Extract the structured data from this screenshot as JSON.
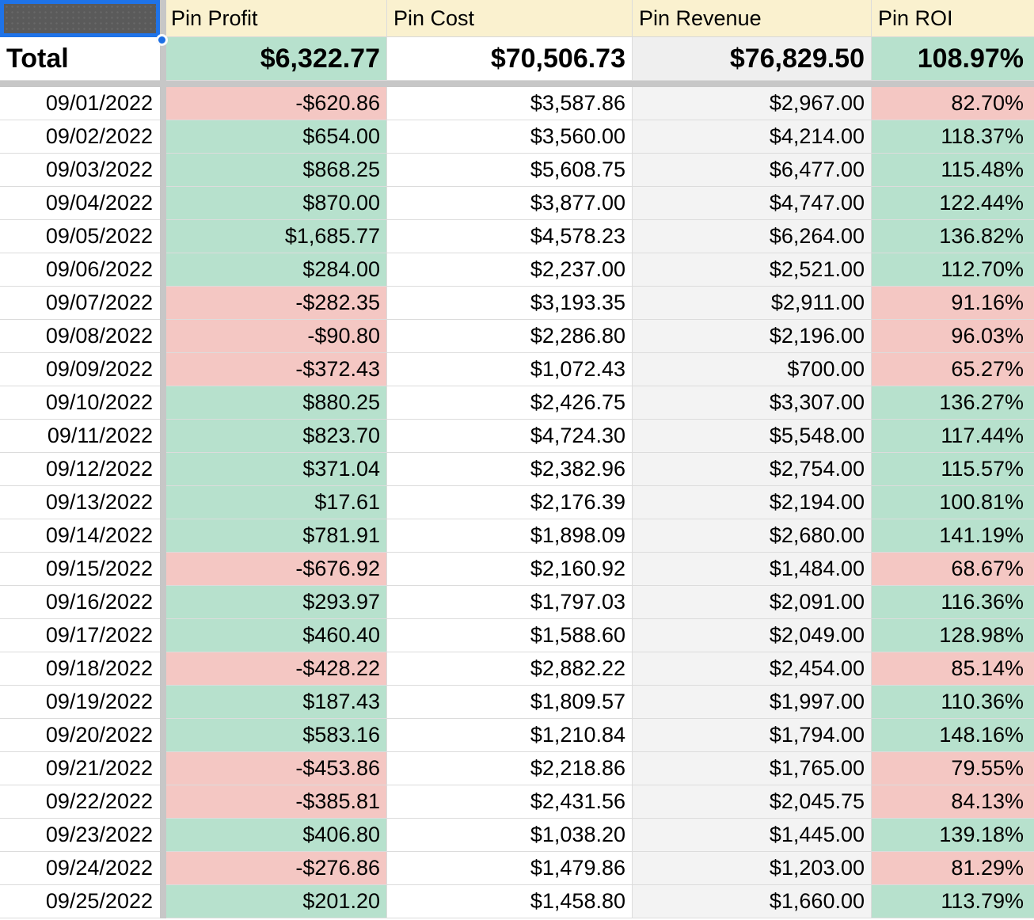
{
  "header": {
    "columns": [
      "Pin Profit",
      "Pin Cost",
      "Pin Revenue",
      "Pin ROI"
    ]
  },
  "total_row": {
    "label": "Total",
    "pin_profit": "$6,322.77",
    "pin_cost": "$70,506.73",
    "pin_revenue": "$76,829.50",
    "pin_roi": "108.97%"
  },
  "rows": [
    {
      "date": "09/01/2022",
      "profit": "-$620.86",
      "profit_state": "neg",
      "cost": "$3,587.86",
      "revenue": "$2,967.00",
      "roi": "82.70%",
      "roi_state": "neg"
    },
    {
      "date": "09/02/2022",
      "profit": "$654.00",
      "profit_state": "pos",
      "cost": "$3,560.00",
      "revenue": "$4,214.00",
      "roi": "118.37%",
      "roi_state": "pos"
    },
    {
      "date": "09/03/2022",
      "profit": "$868.25",
      "profit_state": "pos",
      "cost": "$5,608.75",
      "revenue": "$6,477.00",
      "roi": "115.48%",
      "roi_state": "pos"
    },
    {
      "date": "09/04/2022",
      "profit": "$870.00",
      "profit_state": "pos",
      "cost": "$3,877.00",
      "revenue": "$4,747.00",
      "roi": "122.44%",
      "roi_state": "pos"
    },
    {
      "date": "09/05/2022",
      "profit": "$1,685.77",
      "profit_state": "pos",
      "cost": "$4,578.23",
      "revenue": "$6,264.00",
      "roi": "136.82%",
      "roi_state": "pos"
    },
    {
      "date": "09/06/2022",
      "profit": "$284.00",
      "profit_state": "pos",
      "cost": "$2,237.00",
      "revenue": "$2,521.00",
      "roi": "112.70%",
      "roi_state": "pos"
    },
    {
      "date": "09/07/2022",
      "profit": "-$282.35",
      "profit_state": "neg",
      "cost": "$3,193.35",
      "revenue": "$2,911.00",
      "roi": "91.16%",
      "roi_state": "neg"
    },
    {
      "date": "09/08/2022",
      "profit": "-$90.80",
      "profit_state": "neg",
      "cost": "$2,286.80",
      "revenue": "$2,196.00",
      "roi": "96.03%",
      "roi_state": "neg"
    },
    {
      "date": "09/09/2022",
      "profit": "-$372.43",
      "profit_state": "neg",
      "cost": "$1,072.43",
      "revenue": "$700.00",
      "roi": "65.27%",
      "roi_state": "neg"
    },
    {
      "date": "09/10/2022",
      "profit": "$880.25",
      "profit_state": "pos",
      "cost": "$2,426.75",
      "revenue": "$3,307.00",
      "roi": "136.27%",
      "roi_state": "pos"
    },
    {
      "date": "09/11/2022",
      "profit": "$823.70",
      "profit_state": "pos",
      "cost": "$4,724.30",
      "revenue": "$5,548.00",
      "roi": "117.44%",
      "roi_state": "pos"
    },
    {
      "date": "09/12/2022",
      "profit": "$371.04",
      "profit_state": "pos",
      "cost": "$2,382.96",
      "revenue": "$2,754.00",
      "roi": "115.57%",
      "roi_state": "pos"
    },
    {
      "date": "09/13/2022",
      "profit": "$17.61",
      "profit_state": "pos",
      "cost": "$2,176.39",
      "revenue": "$2,194.00",
      "roi": "100.81%",
      "roi_state": "pos"
    },
    {
      "date": "09/14/2022",
      "profit": "$781.91",
      "profit_state": "pos",
      "cost": "$1,898.09",
      "revenue": "$2,680.00",
      "roi": "141.19%",
      "roi_state": "pos"
    },
    {
      "date": "09/15/2022",
      "profit": "-$676.92",
      "profit_state": "neg",
      "cost": "$2,160.92",
      "revenue": "$1,484.00",
      "roi": "68.67%",
      "roi_state": "neg"
    },
    {
      "date": "09/16/2022",
      "profit": "$293.97",
      "profit_state": "pos",
      "cost": "$1,797.03",
      "revenue": "$2,091.00",
      "roi": "116.36%",
      "roi_state": "pos"
    },
    {
      "date": "09/17/2022",
      "profit": "$460.40",
      "profit_state": "pos",
      "cost": "$1,588.60",
      "revenue": "$2,049.00",
      "roi": "128.98%",
      "roi_state": "pos"
    },
    {
      "date": "09/18/2022",
      "profit": "-$428.22",
      "profit_state": "neg",
      "cost": "$2,882.22",
      "revenue": "$2,454.00",
      "roi": "85.14%",
      "roi_state": "neg"
    },
    {
      "date": "09/19/2022",
      "profit": "$187.43",
      "profit_state": "pos",
      "cost": "$1,809.57",
      "revenue": "$1,997.00",
      "roi": "110.36%",
      "roi_state": "pos"
    },
    {
      "date": "09/20/2022",
      "profit": "$583.16",
      "profit_state": "pos",
      "cost": "$1,210.84",
      "revenue": "$1,794.00",
      "roi": "148.16%",
      "roi_state": "pos"
    },
    {
      "date": "09/21/2022",
      "profit": "-$453.86",
      "profit_state": "neg",
      "cost": "$2,218.86",
      "revenue": "$1,765.00",
      "roi": "79.55%",
      "roi_state": "neg"
    },
    {
      "date": "09/22/2022",
      "profit": "-$385.81",
      "profit_state": "neg",
      "cost": "$2,431.56",
      "revenue": "$2,045.75",
      "roi": "84.13%",
      "roi_state": "neg"
    },
    {
      "date": "09/23/2022",
      "profit": "$406.80",
      "profit_state": "pos",
      "cost": "$1,038.20",
      "revenue": "$1,445.00",
      "roi": "139.18%",
      "roi_state": "pos"
    },
    {
      "date": "09/24/2022",
      "profit": "-$276.86",
      "profit_state": "neg",
      "cost": "$1,479.86",
      "revenue": "$1,203.00",
      "roi": "81.29%",
      "roi_state": "neg"
    },
    {
      "date": "09/25/2022",
      "profit": "$201.20",
      "profit_state": "pos",
      "cost": "$1,458.80",
      "revenue": "$1,660.00",
      "roi": "113.79%",
      "roi_state": "pos"
    }
  ],
  "colors": {
    "positive_fill": "#b7e1cd",
    "negative_fill": "#f4c7c3",
    "header_fill": "#faf1cf",
    "revenue_fill": "#f3f3f3",
    "selection_blue": "#1f73e8",
    "redacted_cell_fill": "#5a5a5a",
    "frozen_divider_gray": "#c7c7c7"
  }
}
